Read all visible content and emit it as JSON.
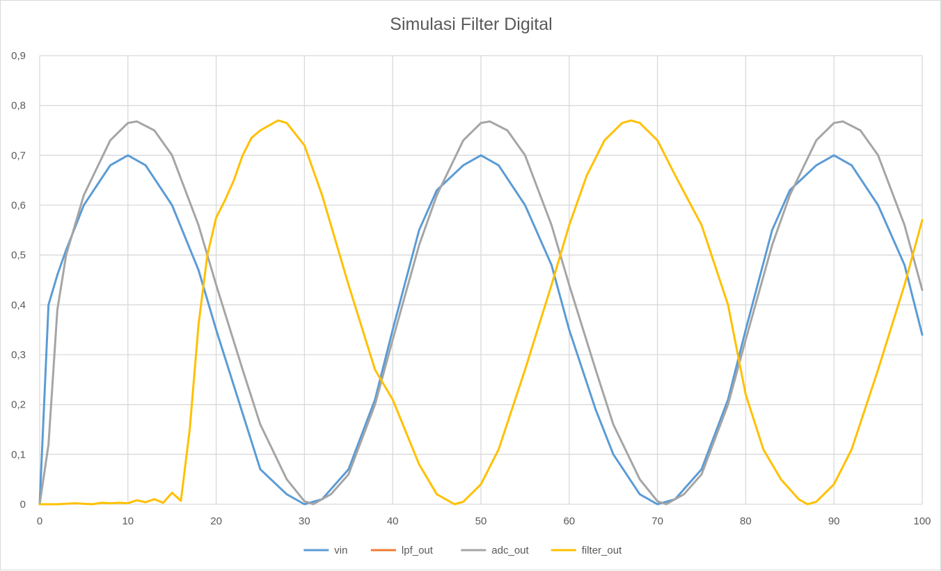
{
  "chart_data": {
    "type": "line",
    "title": "Simulasi Filter Digital",
    "xlabel": "",
    "ylabel": "",
    "xlim": [
      0,
      100
    ],
    "ylim": [
      0,
      0.9
    ],
    "x_ticks": [
      0,
      10,
      20,
      30,
      40,
      50,
      60,
      70,
      80,
      90,
      100
    ],
    "y_ticks": [
      "0",
      "0,1",
      "0,2",
      "0,3",
      "0,4",
      "0,5",
      "0,6",
      "0,7",
      "0,8",
      "0,9"
    ],
    "grid": true,
    "legend_position": "bottom",
    "series": [
      {
        "name": "vin",
        "color": "#5b9bd5",
        "x": [
          0,
          1,
          2,
          3,
          5,
          8,
          10,
          12,
          15,
          18,
          20,
          25,
          28,
          30,
          32,
          35,
          38,
          40,
          43,
          45,
          48,
          50,
          52,
          55,
          58,
          60,
          63,
          65,
          68,
          70,
          72,
          75,
          78,
          80,
          83,
          85,
          88,
          90,
          92,
          95,
          98,
          100
        ],
        "values": [
          0,
          0.4,
          0.46,
          0.51,
          0.6,
          0.68,
          0.7,
          0.68,
          0.6,
          0.47,
          0.35,
          0.07,
          0.02,
          0.0,
          0.01,
          0.07,
          0.21,
          0.35,
          0.55,
          0.63,
          0.68,
          0.7,
          0.68,
          0.6,
          0.48,
          0.35,
          0.19,
          0.1,
          0.02,
          0.0,
          0.01,
          0.07,
          0.21,
          0.35,
          0.55,
          0.63,
          0.68,
          0.7,
          0.68,
          0.6,
          0.48,
          0.34
        ]
      },
      {
        "name": "lpf_out",
        "color": "#ed7d31",
        "x": [],
        "values": []
      },
      {
        "name": "adc_out",
        "color": "#a5a5a5",
        "x": [
          0,
          1,
          2,
          3,
          5,
          8,
          10,
          11,
          13,
          15,
          18,
          20,
          23,
          25,
          28,
          30,
          31,
          33,
          35,
          38,
          40,
          43,
          45,
          48,
          50,
          51,
          53,
          55,
          58,
          60,
          63,
          65,
          68,
          70,
          71,
          73,
          75,
          78,
          80,
          83,
          85,
          88,
          90,
          91,
          93,
          95,
          98,
          100
        ],
        "values": [
          0,
          0.12,
          0.39,
          0.5,
          0.62,
          0.73,
          0.765,
          0.768,
          0.75,
          0.7,
          0.56,
          0.44,
          0.27,
          0.16,
          0.05,
          0.006,
          0.0,
          0.02,
          0.06,
          0.2,
          0.33,
          0.52,
          0.62,
          0.73,
          0.765,
          0.768,
          0.75,
          0.7,
          0.56,
          0.44,
          0.27,
          0.16,
          0.05,
          0.006,
          0.0,
          0.02,
          0.06,
          0.2,
          0.33,
          0.52,
          0.62,
          0.73,
          0.765,
          0.768,
          0.75,
          0.7,
          0.56,
          0.43
        ]
      },
      {
        "name": "filter_out",
        "color": "#ffc000",
        "x": [
          0,
          2,
          4,
          6,
          7,
          8,
          9,
          10,
          11,
          12,
          13,
          14,
          15,
          16,
          17,
          18,
          19,
          20,
          21,
          22,
          23,
          24,
          25,
          26,
          27,
          28,
          30,
          32,
          35,
          38,
          40,
          43,
          45,
          47,
          48,
          50,
          52,
          55,
          58,
          60,
          62,
          64,
          66,
          67,
          68,
          70,
          72,
          75,
          78,
          80,
          82,
          84,
          86,
          87,
          88,
          90,
          92,
          95,
          98,
          100
        ],
        "values": [
          0,
          0,
          0.002,
          0,
          0.003,
          0.002,
          0.003,
          0.002,
          0.008,
          0.004,
          0.01,
          0.003,
          0.023,
          0.007,
          0.15,
          0.36,
          0.5,
          0.575,
          0.61,
          0.65,
          0.7,
          0.735,
          0.75,
          0.76,
          0.77,
          0.765,
          0.72,
          0.62,
          0.44,
          0.27,
          0.21,
          0.08,
          0.02,
          0.0,
          0.005,
          0.04,
          0.11,
          0.27,
          0.44,
          0.56,
          0.66,
          0.73,
          0.765,
          0.77,
          0.765,
          0.73,
          0.66,
          0.56,
          0.4,
          0.22,
          0.11,
          0.05,
          0.01,
          0.0,
          0.005,
          0.04,
          0.11,
          0.27,
          0.44,
          0.57
        ]
      }
    ]
  }
}
